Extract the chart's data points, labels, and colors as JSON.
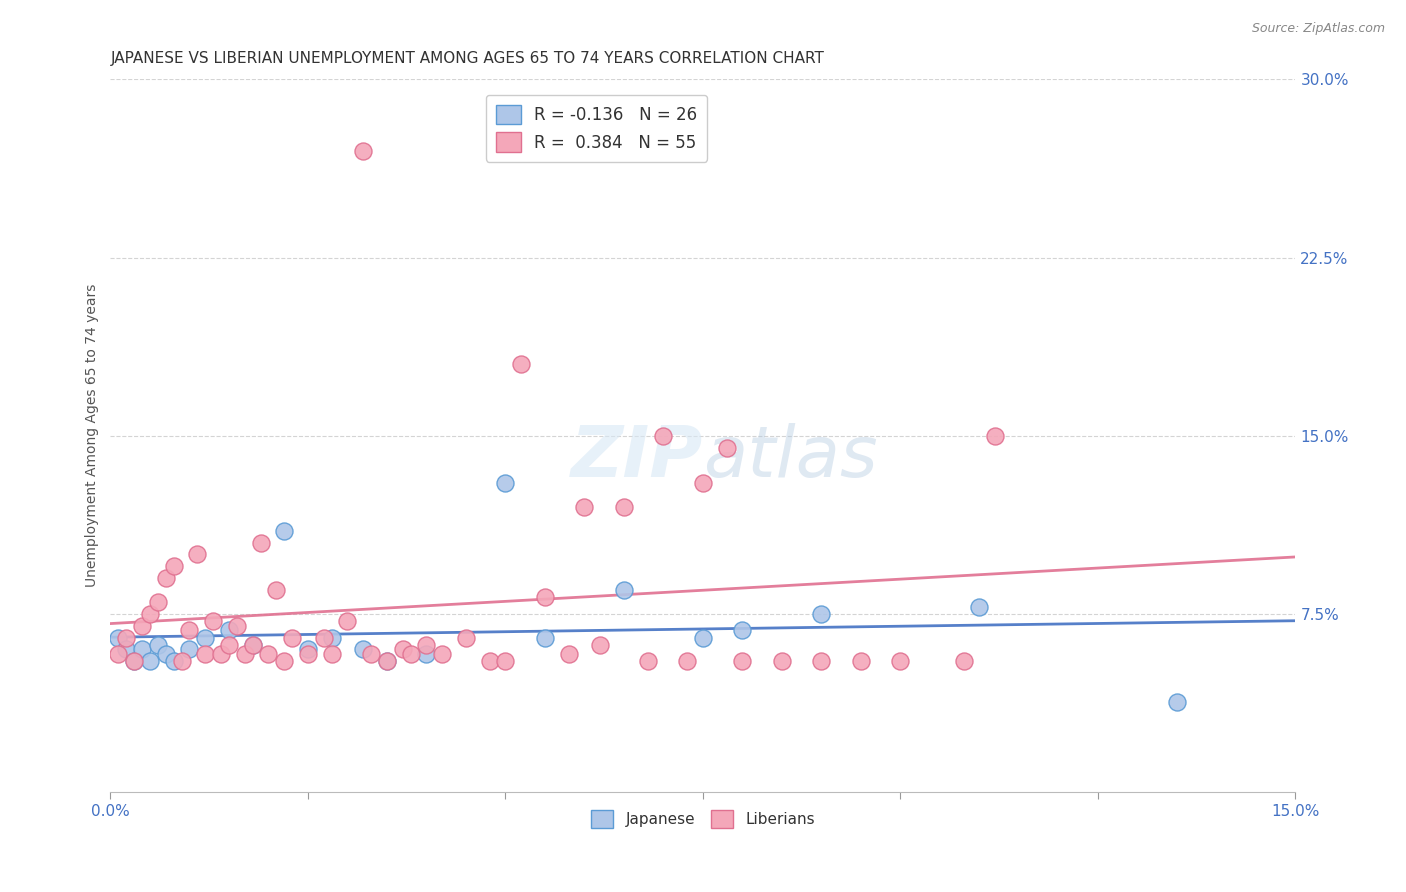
{
  "title": "JAPANESE VS LIBERIAN UNEMPLOYMENT AMONG AGES 65 TO 74 YEARS CORRELATION CHART",
  "source": "Source: ZipAtlas.com",
  "ylabel": "Unemployment Among Ages 65 to 74 years",
  "xlim": [
    0.0,
    0.15
  ],
  "ylim": [
    0.0,
    0.3
  ],
  "yticks": [
    0.075,
    0.15,
    0.225,
    0.3
  ],
  "ytick_labels": [
    "7.5%",
    "15.0%",
    "22.5%",
    "30.0%"
  ],
  "xticks": [
    0.0,
    0.025,
    0.05,
    0.075,
    0.1,
    0.125,
    0.15
  ],
  "background_color": "#ffffff",
  "grid_color": "#d0d0d0",
  "title_color": "#333333",
  "axis_color": "#4472c4",
  "japanese_color": "#aec6e8",
  "liberian_color": "#f4a7b9",
  "japanese_edge": "#5b9bd5",
  "liberian_edge": "#e07090",
  "japanese_line_color": "#4472c4",
  "liberian_line_color": "#e07090",
  "legend_r_japanese": "R = -0.136",
  "legend_n_japanese": "N = 26",
  "legend_r_liberian": "R =  0.384",
  "legend_n_liberian": "N = 55",
  "japanese_x": [
    0.001,
    0.002,
    0.003,
    0.004,
    0.005,
    0.006,
    0.007,
    0.008,
    0.01,
    0.012,
    0.015,
    0.018,
    0.022,
    0.025,
    0.028,
    0.032,
    0.035,
    0.04,
    0.05,
    0.055,
    0.065,
    0.075,
    0.08,
    0.09,
    0.11,
    0.135
  ],
  "japanese_y": [
    0.065,
    0.06,
    0.055,
    0.06,
    0.055,
    0.062,
    0.058,
    0.055,
    0.06,
    0.065,
    0.068,
    0.062,
    0.11,
    0.06,
    0.065,
    0.06,
    0.055,
    0.058,
    0.13,
    0.065,
    0.085,
    0.065,
    0.068,
    0.075,
    0.078,
    0.038
  ],
  "liberian_x": [
    0.001,
    0.002,
    0.003,
    0.004,
    0.005,
    0.006,
    0.007,
    0.008,
    0.009,
    0.01,
    0.011,
    0.012,
    0.013,
    0.014,
    0.015,
    0.016,
    0.017,
    0.018,
    0.019,
    0.02,
    0.021,
    0.022,
    0.023,
    0.025,
    0.027,
    0.028,
    0.03,
    0.032,
    0.033,
    0.035,
    0.037,
    0.038,
    0.04,
    0.042,
    0.045,
    0.048,
    0.05,
    0.052,
    0.055,
    0.058,
    0.06,
    0.062,
    0.065,
    0.068,
    0.07,
    0.073,
    0.075,
    0.078,
    0.08,
    0.085,
    0.09,
    0.095,
    0.1,
    0.108,
    0.112
  ],
  "liberian_y": [
    0.058,
    0.065,
    0.055,
    0.07,
    0.075,
    0.08,
    0.09,
    0.095,
    0.055,
    0.068,
    0.1,
    0.058,
    0.072,
    0.058,
    0.062,
    0.07,
    0.058,
    0.062,
    0.105,
    0.058,
    0.085,
    0.055,
    0.065,
    0.058,
    0.065,
    0.058,
    0.072,
    0.27,
    0.058,
    0.055,
    0.06,
    0.058,
    0.062,
    0.058,
    0.065,
    0.055,
    0.055,
    0.18,
    0.082,
    0.058,
    0.12,
    0.062,
    0.12,
    0.055,
    0.15,
    0.055,
    0.13,
    0.145,
    0.055,
    0.055,
    0.055,
    0.055,
    0.055,
    0.055,
    0.15
  ]
}
